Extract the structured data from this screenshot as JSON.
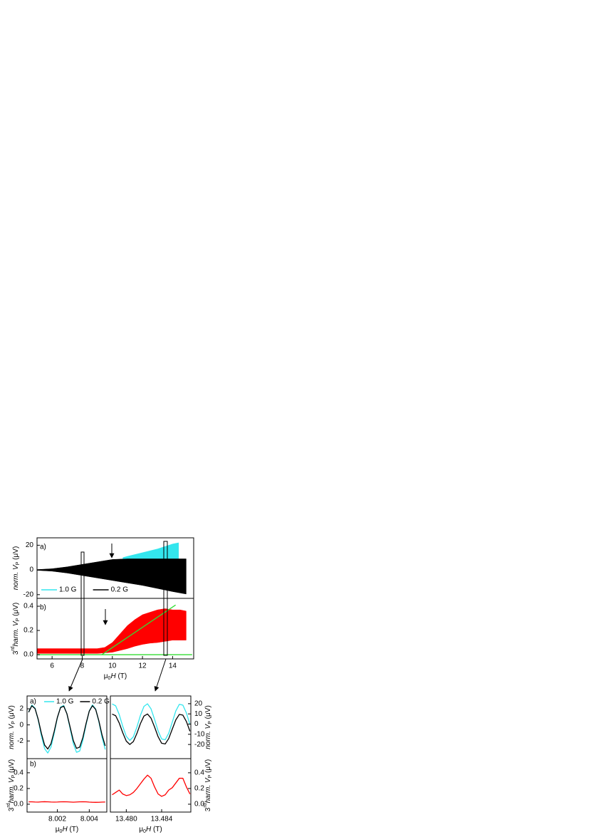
{
  "chart_data": [
    {
      "type": "area",
      "label": "a)",
      "xlim": [
        5,
        15.4
      ],
      "ylim": [
        -23,
        26
      ],
      "yticks": [
        -20,
        0,
        20
      ],
      "ylabel": [
        {
          "text": "norm. V",
          "style": "italic"
        },
        {
          "text": "P",
          "style": "sub"
        },
        {
          "text": " (μV)",
          "style": "normal"
        }
      ],
      "legend": "lower left",
      "series": [
        {
          "name": "1.0 G",
          "color": "#33e6ee",
          "x": [
            10.7,
            11,
            12,
            13,
            14,
            14.4
          ],
          "values": [
            10,
            11,
            14,
            17,
            21,
            22
          ],
          "lower": [
            -9,
            -10,
            -12,
            -14,
            -17,
            -18
          ]
        },
        {
          "name": "0.2 G",
          "color": "#000000",
          "x": [
            5,
            6,
            7,
            8,
            9,
            10,
            11,
            12,
            13,
            14,
            14.9
          ],
          "values": [
            0.3,
            1,
            2.5,
            4.5,
            6.5,
            8.5,
            9,
            9,
            9,
            9,
            9
          ],
          "lower": [
            -0.3,
            -1,
            -2.5,
            -4.5,
            -6.5,
            -8.5,
            -10.5,
            -12.5,
            -15,
            -17.5,
            -19.5
          ]
        }
      ]
    },
    {
      "type": "area",
      "label": "b)",
      "xlim": [
        5,
        15.4
      ],
      "ylim": [
        -0.035,
        0.465
      ],
      "xticks": [
        6,
        8,
        10,
        12,
        14
      ],
      "yticks": [
        {
          "value": 0,
          "label": "0.0"
        },
        0.2,
        0.4
      ],
      "ylabel": [
        {
          "text": "3",
          "style": "normal"
        },
        {
          "text": "rd",
          "style": "sup"
        },
        {
          "text": "harm. V",
          "style": "italic"
        },
        {
          "text": "P",
          "style": "sub"
        },
        {
          "text": " (μV)",
          "style": "normal"
        }
      ],
      "xlabel": [
        {
          "text": "μ",
          "style": "normal"
        },
        {
          "text": "0",
          "style": "sub"
        },
        {
          "text": "H",
          "style": "italic"
        },
        {
          "text": " (T)",
          "style": "normal"
        }
      ],
      "series": [
        {
          "color": "#ff0000",
          "x": [
            5,
            6,
            7,
            8,
            9,
            9.5,
            10,
            10.5,
            11,
            11.5,
            12,
            12.5,
            13,
            13.5,
            14,
            14.5,
            14.9
          ],
          "values": [
            0.05,
            0.05,
            0.05,
            0.05,
            0.05,
            0.06,
            0.1,
            0.17,
            0.24,
            0.29,
            0.33,
            0.35,
            0.37,
            0.38,
            0.37,
            0.37,
            0.36
          ],
          "lower": [
            0.01,
            0.01,
            0.01,
            0.01,
            0.01,
            0.015,
            0.02,
            0.035,
            0.05,
            0.07,
            0.085,
            0.095,
            0.1,
            0.11,
            0.12,
            0.12,
            0.12
          ]
        },
        {
          "color": "#33dd33",
          "x": [
            5,
            15.3
          ],
          "values": [
            0,
            0
          ]
        },
        {
          "color": "#33dd33",
          "x": [
            9.3,
            14.2
          ],
          "values": [
            0,
            0.41
          ]
        }
      ]
    },
    {
      "type": "line",
      "label": "a)",
      "xlim": [
        8.0001,
        8.0051
      ],
      "ylim": [
        -4.2,
        3.6
      ],
      "yticks": [
        -2,
        0,
        2
      ],
      "ylabel": [
        {
          "text": "norm. V",
          "style": "italic"
        },
        {
          "text": "P",
          "style": "sub"
        },
        {
          "text": " (μV)",
          "style": "normal"
        }
      ],
      "legend": "upper left",
      "series": [
        {
          "name": "1.0 G",
          "color": "#33e6ee",
          "x": [
            8.0002,
            8.0004,
            8.0006,
            8.0008,
            8.001,
            8.0012,
            8.0014,
            8.0016,
            8.0018,
            8.002,
            8.0022,
            8.0024,
            8.0026,
            8.0028,
            8.003,
            8.0032,
            8.0034,
            8.0036,
            8.0038,
            8.004,
            8.0042,
            8.0044,
            8.0046,
            8.0048,
            8.005
          ],
          "values": [
            1.59,
            2.47,
            2.09,
            0.6,
            -1.36,
            -2.95,
            -3.5,
            -2.77,
            -1.07,
            0.87,
            2.22,
            2.42,
            1.37,
            -0.47,
            -2.33,
            -3.41,
            -3.25,
            -1.91,
            0.02,
            1.73,
            2.49,
            1.98,
            0.41,
            -1.55,
            -3.06
          ]
        },
        {
          "name": "0.2 G",
          "color": "#000000",
          "x": [
            8.0002,
            8.0004,
            8.0006,
            8.0008,
            8.001,
            8.0012,
            8.0014,
            8.0016,
            8.0018,
            8.002,
            8.0022,
            8.0024,
            8.0026,
            8.0028,
            8.003,
            8.0032,
            8.0034,
            8.0036,
            8.0038,
            8.004,
            8.0042,
            8.0044,
            8.0046,
            8.0048,
            8.005
          ],
          "values": [
            1.58,
            2.38,
            2.03,
            0.69,
            -1.07,
            -2.51,
            -3.0,
            -2.34,
            -0.82,
            0.93,
            2.15,
            2.33,
            1.38,
            -0.28,
            -1.95,
            -2.92,
            -2.77,
            -1.57,
            0.17,
            1.71,
            2.39,
            1.93,
            0.52,
            -1.25,
            -2.61
          ]
        }
      ]
    },
    {
      "type": "line",
      "yaxis_side": "right",
      "xlim": [
        13.4782,
        13.4873
      ],
      "ylim": [
        -33.9,
        27.6
      ],
      "yticks": [
        -20,
        -10,
        0,
        10,
        20
      ],
      "ylabel": [
        {
          "text": "norm. V",
          "style": "italic"
        },
        {
          "text": "P",
          "style": "sub"
        },
        {
          "text": " (μV)",
          "style": "normal"
        }
      ],
      "series": [
        {
          "color": "#33e6ee",
          "x": [
            13.4784,
            13.4788,
            13.4792,
            13.4796,
            13.48,
            13.4804,
            13.4808,
            13.4812,
            13.4816,
            13.482,
            13.4824,
            13.4828,
            13.4832,
            13.4836,
            13.484,
            13.4844,
            13.4848,
            13.4852,
            13.4856,
            13.486,
            13.4864,
            13.4868,
            13.4872
          ],
          "values": [
            19.8,
            17.9,
            9.4,
            -2.2,
            -12.0,
            -16.0,
            -12.5,
            -3.0,
            8.6,
            17.4,
            19.9,
            14.9,
            4.6,
            -6.8,
            -14.6,
            -15.4,
            -9.0,
            1.9,
            12.9,
            19.4,
            18.6,
            10.9,
            -0.4
          ]
        },
        {
          "color": "#000000",
          "x": [
            13.4784,
            13.4788,
            13.4792,
            13.4796,
            13.48,
            13.4804,
            13.4808,
            13.4812,
            13.4816,
            13.482,
            13.4824,
            13.4828,
            13.4832,
            13.4836,
            13.484,
            13.4844,
            13.4848,
            13.4852,
            13.4856,
            13.486,
            13.4864,
            13.4868,
            13.4872
          ],
          "values": [
            9.8,
            8.2,
            1.1,
            -8.5,
            -16.7,
            -20.0,
            -17.1,
            -9.2,
            0.5,
            7.9,
            9.9,
            5.8,
            -2.9,
            -12.4,
            -18.8,
            -19.5,
            -14.2,
            -5.0,
            4.1,
            9.5,
            8.8,
            2.5,
            -7.0
          ]
        }
      ]
    },
    {
      "type": "line",
      "label": "b)",
      "xlim": [
        8.0001,
        8.0051
      ],
      "ylim": [
        -0.1,
        0.58
      ],
      "xticks": [
        8.002,
        8.004
      ],
      "yticks": [
        {
          "value": 0,
          "label": "0.0"
        },
        0.2,
        0.4
      ],
      "ylabel": [
        {
          "text": "3",
          "style": "normal"
        },
        {
          "text": "rd",
          "style": "sup"
        },
        {
          "text": "harm. V",
          "style": "italic"
        },
        {
          "text": "P",
          "style": "sub"
        },
        {
          "text": " (μV)",
          "style": "normal"
        }
      ],
      "xlabel": [
        {
          "text": "μ",
          "style": "normal"
        },
        {
          "text": "0",
          "style": "sub"
        },
        {
          "text": "H",
          "style": "italic"
        },
        {
          "text": " (T)",
          "style": "normal"
        }
      ],
      "series": [
        {
          "color": "#ff0000",
          "x": [
            8.0002,
            8.0004,
            8.0006,
            8.0008,
            8.001,
            8.0012,
            8.0014,
            8.0016,
            8.0018,
            8.002,
            8.0022,
            8.0024,
            8.0026,
            8.0028,
            8.003,
            8.0032,
            8.0034,
            8.0036,
            8.0038,
            8.004,
            8.0042,
            8.0044,
            8.0046,
            8.0048,
            8.005
          ],
          "values": [
            0.03,
            0.03,
            0.028,
            0.027,
            0.03,
            0.032,
            0.03,
            0.028,
            0.027,
            0.028,
            0.03,
            0.031,
            0.03,
            0.028,
            0.026,
            0.028,
            0.03,
            0.031,
            0.03,
            0.027,
            0.025,
            0.024,
            0.025,
            0.027,
            0.028
          ]
        }
      ]
    },
    {
      "type": "line",
      "yaxis_side": "right",
      "xlim": [
        13.4782,
        13.4873
      ],
      "ylim": [
        -0.1,
        0.58
      ],
      "xticks": [
        {
          "value": 13.48,
          "label": "13.480"
        },
        13.484
      ],
      "yticks": [
        {
          "value": 0,
          "label": "0.0"
        },
        0.2,
        0.4
      ],
      "ylabel": [
        {
          "text": "3",
          "style": "normal"
        },
        {
          "text": "rd",
          "style": "sup"
        },
        {
          "text": "harm. V",
          "style": "italic"
        },
        {
          "text": "P",
          "style": "sub"
        },
        {
          "text": " (μV)",
          "style": "normal"
        }
      ],
      "xlabel": [
        {
          "text": "μ",
          "style": "normal"
        },
        {
          "text": "0",
          "style": "sub"
        },
        {
          "text": "H",
          "style": "italic"
        },
        {
          "text": " (T)",
          "style": "normal"
        }
      ],
      "series": [
        {
          "color": "#ff0000",
          "x": [
            13.4784,
            13.4788,
            13.4792,
            13.4796,
            13.48,
            13.4804,
            13.4808,
            13.4812,
            13.4816,
            13.482,
            13.4824,
            13.4828,
            13.4832,
            13.4836,
            13.484,
            13.4844,
            13.4848,
            13.4852,
            13.4856,
            13.486,
            13.4864,
            13.4868,
            13.4872
          ],
          "values": [
            0.12,
            0.15,
            0.18,
            0.13,
            0.11,
            0.12,
            0.15,
            0.2,
            0.26,
            0.32,
            0.37,
            0.33,
            0.22,
            0.13,
            0.1,
            0.12,
            0.18,
            0.21,
            0.27,
            0.33,
            0.33,
            0.22,
            0.13
          ]
        }
      ]
    }
  ]
}
